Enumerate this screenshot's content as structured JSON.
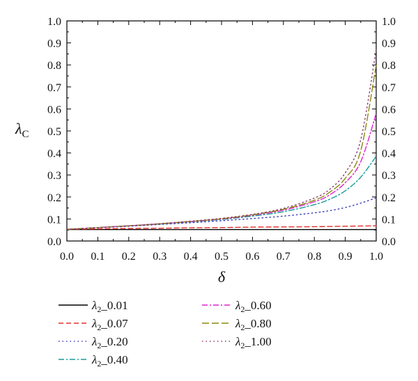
{
  "chart_data": {
    "type": "line",
    "xlabel": "δ",
    "ylabel": "λ",
    "ylabel_sub": "C",
    "xlim": [
      0.0,
      1.0
    ],
    "ylim": [
      0.0,
      1.0
    ],
    "x_ticks": [
      "0.0",
      "0.1",
      "0.2",
      "0.3",
      "0.4",
      "0.5",
      "0.6",
      "0.7",
      "0.8",
      "0.9",
      "1.0"
    ],
    "y_ticks": [
      "0.0",
      "0.1",
      "0.2",
      "0.3",
      "0.4",
      "0.5",
      "0.6",
      "0.7",
      "0.8",
      "0.9",
      "1.0"
    ],
    "grid": false,
    "legend_position": "bottom",
    "x": [
      0.0,
      0.1,
      0.2,
      0.3,
      0.4,
      0.5,
      0.6,
      0.7,
      0.8,
      0.85,
      0.9,
      0.95,
      1.0
    ],
    "series": [
      {
        "name": "λ2_0.01",
        "symbol": "λ",
        "sub": "2",
        "value": "_0.01",
        "color": "#000000",
        "dash": "solid",
        "values": [
          0.052,
          0.052,
          0.052,
          0.052,
          0.052,
          0.052,
          0.052,
          0.052,
          0.052,
          0.052,
          0.052,
          0.052,
          0.052
        ]
      },
      {
        "name": "λ2_0.07",
        "symbol": "λ",
        "sub": "2",
        "value": "_0.07",
        "color": "#e0312f",
        "dash": "dash",
        "values": [
          0.053,
          0.055,
          0.057,
          0.058,
          0.06,
          0.061,
          0.063,
          0.064,
          0.065,
          0.066,
          0.067,
          0.068,
          0.069
        ]
      },
      {
        "name": "λ2_0.20",
        "symbol": "λ",
        "sub": "2",
        "value": "_0.20",
        "color": "#3b3fb8",
        "dash": "dot",
        "values": [
          0.053,
          0.06,
          0.067,
          0.075,
          0.083,
          0.092,
          0.102,
          0.113,
          0.128,
          0.138,
          0.152,
          0.172,
          0.196
        ]
      },
      {
        "name": "λ2_0.40",
        "symbol": "λ",
        "sub": "2",
        "value": "_0.40",
        "color": "#1a9a9a",
        "dash": "dashdot",
        "values": [
          0.053,
          0.061,
          0.069,
          0.077,
          0.087,
          0.098,
          0.113,
          0.133,
          0.165,
          0.19,
          0.228,
          0.29,
          0.385
        ]
      },
      {
        "name": "λ2_0.60",
        "symbol": "λ",
        "sub": "2",
        "value": "_0.60",
        "color": "#e020d0",
        "dash": "dashdot",
        "values": [
          0.053,
          0.061,
          0.069,
          0.078,
          0.088,
          0.1,
          0.117,
          0.14,
          0.178,
          0.21,
          0.265,
          0.36,
          0.58
        ]
      },
      {
        "name": "λ2_0.80",
        "symbol": "λ",
        "sub": "2",
        "value": "_0.80",
        "color": "#8a8a10",
        "dash": "longdash",
        "values": [
          0.053,
          0.061,
          0.069,
          0.078,
          0.089,
          0.101,
          0.119,
          0.144,
          0.185,
          0.222,
          0.285,
          0.41,
          0.8
        ]
      },
      {
        "name": "λ2_1.00",
        "symbol": "λ",
        "sub": "2",
        "value": "_1.00",
        "color": "#8b3a6e",
        "dash": "dot",
        "values": [
          0.053,
          0.061,
          0.069,
          0.079,
          0.09,
          0.103,
          0.121,
          0.148,
          0.195,
          0.235,
          0.31,
          0.46,
          0.87
        ]
      }
    ]
  }
}
